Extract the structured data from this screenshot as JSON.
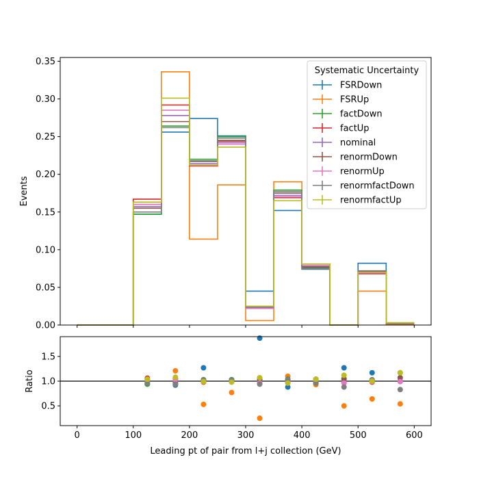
{
  "chart_data": [
    {
      "type": "line",
      "drawstyle": "step",
      "ylabel": "Events",
      "xlim": [
        -30,
        630
      ],
      "ylim": [
        0,
        0.355
      ],
      "xticks": [
        0,
        100,
        200,
        300,
        400,
        500,
        600
      ],
      "xtick_labels": [
        "0",
        "100",
        "200",
        "300",
        "400",
        "500",
        "600"
      ],
      "yticks": [
        0.0,
        0.05,
        0.1,
        0.15,
        0.2,
        0.25,
        0.3,
        0.35
      ],
      "ytick_labels": [
        "0.00",
        "0.05",
        "0.10",
        "0.15",
        "0.20",
        "0.25",
        "0.30",
        "0.35"
      ],
      "bin_edges": [
        0,
        50,
        100,
        150,
        200,
        250,
        300,
        350,
        400,
        450,
        500,
        550,
        600
      ],
      "legend": {
        "title": "Systematic Uncertainty",
        "location": "upper right"
      },
      "series": [
        {
          "name": "FSRDown",
          "color": "#1f77b4",
          "values": [
            0.0,
            0.0,
            0.147,
            0.256,
            0.274,
            0.251,
            0.045,
            0.152,
            0.074,
            0.0,
            0.082,
            0.002
          ]
        },
        {
          "name": "FSRUp",
          "color": "#ff7f0e",
          "values": [
            0.0,
            0.0,
            0.163,
            0.336,
            0.114,
            0.186,
            0.006,
            0.19,
            0.075,
            0.0,
            0.045,
            0.001
          ]
        },
        {
          "name": "factDown",
          "color": "#2ca02c",
          "values": [
            0.0,
            0.0,
            0.147,
            0.264,
            0.22,
            0.25,
            0.024,
            0.179,
            0.076,
            0.0,
            0.071,
            0.003
          ]
        },
        {
          "name": "factUp",
          "color": "#d62728",
          "values": [
            0.0,
            0.0,
            0.167,
            0.292,
            0.211,
            0.244,
            0.023,
            0.169,
            0.081,
            0.0,
            0.068,
            0.002
          ]
        },
        {
          "name": "nominal",
          "color": "#9467bd",
          "values": [
            0.0,
            0.0,
            0.157,
            0.278,
            0.214,
            0.242,
            0.023,
            0.172,
            0.078,
            0.0,
            0.07,
            0.002
          ]
        },
        {
          "name": "renormDown",
          "color": "#8c564b",
          "values": [
            0.0,
            0.0,
            0.155,
            0.27,
            0.217,
            0.245,
            0.024,
            0.175,
            0.077,
            0.0,
            0.071,
            0.002
          ]
        },
        {
          "name": "renormUp",
          "color": "#e377c2",
          "values": [
            0.0,
            0.0,
            0.16,
            0.285,
            0.212,
            0.24,
            0.022,
            0.17,
            0.079,
            0.0,
            0.069,
            0.002
          ]
        },
        {
          "name": "renormfactDown",
          "color": "#7f7f7f",
          "values": [
            0.0,
            0.0,
            0.15,
            0.262,
            0.218,
            0.248,
            0.024,
            0.177,
            0.075,
            0.0,
            0.072,
            0.002
          ]
        },
        {
          "name": "renormfactUp",
          "color": "#bcbd22",
          "values": [
            0.0,
            0.0,
            0.163,
            0.301,
            0.212,
            0.236,
            0.025,
            0.165,
            0.081,
            0.0,
            0.07,
            0.003
          ]
        }
      ]
    },
    {
      "type": "scatter",
      "xlabel": "Leading pt of pair from l+j collection (GeV)",
      "ylabel": "Ratio",
      "xlim": [
        -30,
        630
      ],
      "ylim": [
        0.1,
        1.9
      ],
      "xticks": [
        0,
        100,
        200,
        300,
        400,
        500,
        600
      ],
      "xtick_labels": [
        "0",
        "100",
        "200",
        "300",
        "400",
        "500",
        "600"
      ],
      "yticks": [
        0.5,
        1.0,
        1.5
      ],
      "ytick_labels": [
        "0.5",
        "1.0",
        "1.5"
      ],
      "reference_line": 1.0,
      "x": [
        125,
        175,
        225,
        275,
        325,
        375,
        425,
        475,
        525,
        575
      ],
      "series": [
        {
          "name": "FSRDown",
          "color": "#1f77b4",
          "values": [
            0.94,
            0.92,
            1.27,
            1.03,
            1.87,
            0.88,
            0.95,
            1.27,
            1.17,
            1.0
          ]
        },
        {
          "name": "FSRUp",
          "color": "#ff7f0e",
          "values": [
            1.04,
            1.21,
            0.53,
            0.77,
            0.25,
            1.1,
            0.93,
            0.5,
            0.64,
            0.54
          ]
        },
        {
          "name": "factDown",
          "color": "#2ca02c",
          "values": [
            0.94,
            0.95,
            1.03,
            1.03,
            1.04,
            1.04,
            0.98,
            1.03,
            1.01,
            1.17
          ]
        },
        {
          "name": "factUp",
          "color": "#d62728",
          "values": [
            1.06,
            1.05,
            0.98,
            1.01,
            1.0,
            0.98,
            1.04,
            0.98,
            0.98,
            1.0
          ]
        },
        {
          "name": "nominal",
          "color": "#9467bd",
          "values": [
            1.0,
            1.0,
            1.0,
            1.0,
            1.0,
            1.0,
            1.0,
            1.0,
            1.0,
            1.0
          ]
        },
        {
          "name": "renormDown",
          "color": "#8c564b",
          "values": [
            0.99,
            0.97,
            1.01,
            1.01,
            1.04,
            1.02,
            0.99,
            1.05,
            1.01,
            1.07
          ]
        },
        {
          "name": "renormUp",
          "color": "#e377c2",
          "values": [
            1.02,
            1.03,
            0.99,
            0.99,
            0.96,
            0.99,
            1.01,
            0.96,
            0.99,
            0.99
          ]
        },
        {
          "name": "renormfactDown",
          "color": "#7f7f7f",
          "values": [
            0.96,
            0.94,
            1.02,
            1.02,
            0.94,
            1.03,
            0.96,
            0.88,
            1.03,
            0.83
          ]
        },
        {
          "name": "renormfactUp",
          "color": "#bcbd22",
          "values": [
            1.04,
            1.08,
            0.99,
            0.98,
            1.07,
            0.96,
            1.04,
            1.12,
            1.0,
            1.17
          ]
        }
      ]
    }
  ]
}
